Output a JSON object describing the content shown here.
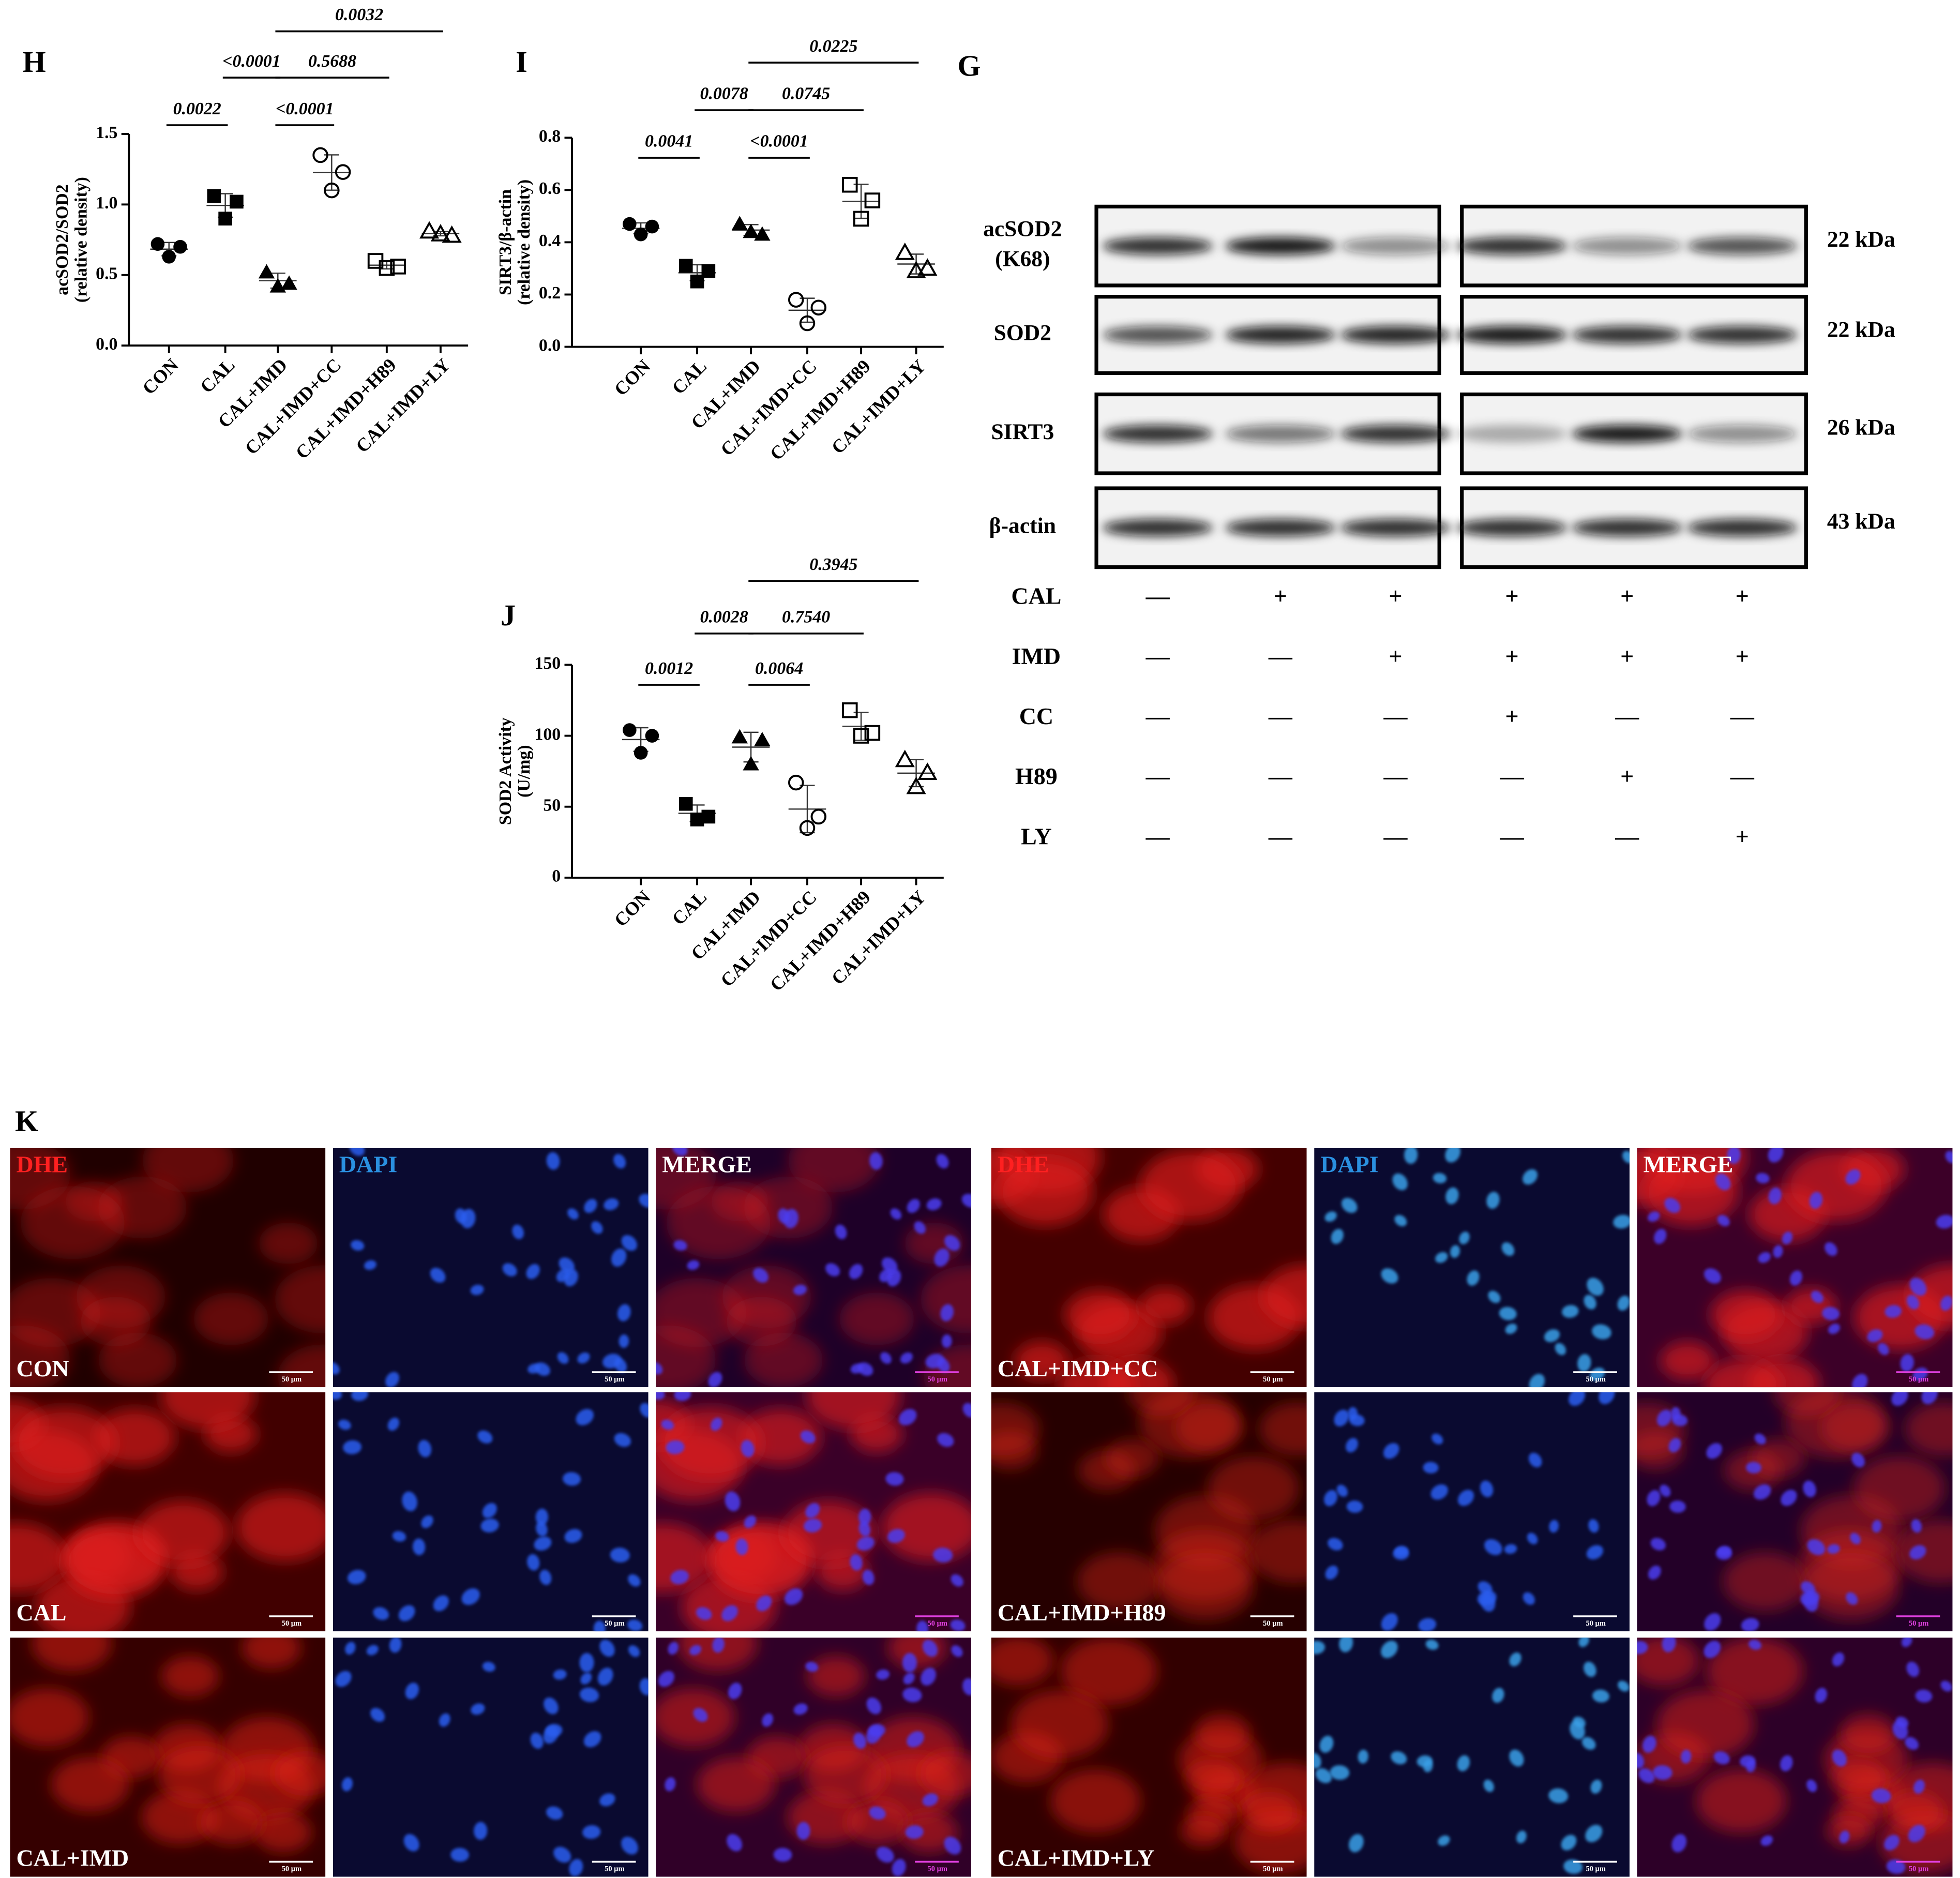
{
  "chart_data": [
    {
      "type": "scatter",
      "panel": "H",
      "ylabel": [
        "acSOD2/SOD2",
        "(relative density)"
      ],
      "categories": [
        "CON",
        "CAL",
        "CAL+IMD",
        "CAL+IMD+CC",
        "CAL+IMD+H89",
        "CAL+IMD+LY"
      ],
      "markers": [
        "circle",
        "square",
        "triangle",
        "circle-open",
        "square-open",
        "triangle-open"
      ],
      "color": "#000000",
      "values": [
        [
          0.72,
          0.7,
          0.63
        ],
        [
          1.06,
          1.02,
          0.9
        ],
        [
          0.52,
          0.44,
          0.42
        ],
        [
          1.35,
          1.23,
          1.1
        ],
        [
          0.6,
          0.56,
          0.55
        ],
        [
          0.81,
          0.78,
          0.79
        ]
      ],
      "ylim": [
        0,
        1.5
      ],
      "yticks": [
        {
          "value": 0,
          "label": "0.0"
        },
        {
          "value": 0.5,
          "label": "0.5"
        },
        {
          "value": 1,
          "label": "1.0"
        },
        {
          "value": 1.5,
          "label": "1.5"
        }
      ],
      "annotations": [
        "0.0022",
        "<0.0001",
        "<0.0001",
        "0.5688",
        "0.0032"
      ]
    },
    {
      "type": "scatter",
      "panel": "I",
      "ylabel": [
        "SIRT3/β-actin",
        "(relative density)"
      ],
      "categories": [
        "CON",
        "CAL",
        "CAL+IMD",
        "CAL+IMD+CC",
        "CAL+IMD+H89",
        "CAL+IMD+LY"
      ],
      "markers": [
        "circle",
        "square",
        "triangle",
        "circle-open",
        "square-open",
        "triangle-open"
      ],
      "color": "#000000",
      "values": [
        [
          0.47,
          0.46,
          0.43
        ],
        [
          0.31,
          0.29,
          0.25
        ],
        [
          0.47,
          0.43,
          0.44
        ],
        [
          0.18,
          0.15,
          0.09
        ],
        [
          0.62,
          0.56,
          0.49
        ],
        [
          0.36,
          0.3,
          0.29
        ]
      ],
      "ylim": [
        0,
        0.8
      ],
      "yticks": [
        {
          "value": 0,
          "label": "0.0"
        },
        {
          "value": 0.2,
          "label": "0.2"
        },
        {
          "value": 0.4,
          "label": "0.4"
        },
        {
          "value": 0.6,
          "label": "0.6"
        },
        {
          "value": 0.8,
          "label": "0.8"
        }
      ],
      "annotations": [
        "0.0041",
        "0.0078",
        "<0.0001",
        "0.0745",
        "0.0225"
      ]
    },
    {
      "type": "scatter",
      "panel": "J",
      "ylabel": [
        "SOD2 Activity",
        "(U/mg)"
      ],
      "categories": [
        "CON",
        "CAL",
        "CAL+IMD",
        "CAL+IMD+CC",
        "CAL+IMD+H89",
        "CAL+IMD+LY"
      ],
      "markers": [
        "circle",
        "square",
        "triangle",
        "circle-open",
        "square-open",
        "triangle-open"
      ],
      "color": "#000000",
      "values": [
        [
          104,
          100,
          88
        ],
        [
          52,
          43,
          41
        ],
        [
          99,
          97,
          80
        ],
        [
          67,
          43,
          35
        ],
        [
          118,
          102,
          100
        ],
        [
          83,
          74,
          64
        ]
      ],
      "ylim": [
        0,
        150
      ],
      "yticks": [
        0,
        50,
        100,
        150
      ],
      "annotations": [
        "0.0012",
        "0.0028",
        "0.0064",
        "0.7540",
        "0.3945"
      ]
    }
  ],
  "blot": {
    "panel": "G",
    "rows": [
      {
        "label": [
          "acSOD2",
          "(K68)"
        ],
        "size": "22 kDa"
      },
      {
        "label": [
          "SOD2"
        ],
        "size": "22 kDa"
      },
      {
        "label": [
          "SIRT3"
        ],
        "size": "26 kDa"
      },
      {
        "label": [
          "β-actin"
        ],
        "size": "43 kDa"
      }
    ],
    "treatments": [
      {
        "label": "CAL",
        "signs": [
          "—",
          "+",
          "+",
          "+",
          "+",
          "+"
        ]
      },
      {
        "label": "IMD",
        "signs": [
          "—",
          "—",
          "+",
          "+",
          "+",
          "+"
        ]
      },
      {
        "label": "CC",
        "signs": [
          "—",
          "—",
          "—",
          "+",
          "—",
          "—"
        ]
      },
      {
        "label": "H89",
        "signs": [
          "—",
          "—",
          "—",
          "—",
          "+",
          "—"
        ]
      },
      {
        "label": "LY",
        "signs": [
          "—",
          "—",
          "—",
          "—",
          "—",
          "+"
        ]
      }
    ]
  },
  "microscopy": {
    "panel": "K",
    "channels": [
      "DHE",
      "DAPI",
      "MERGE"
    ],
    "groups": [
      "CON",
      "CAL",
      "CAL+IMD",
      "CAL+IMD+CC",
      "CAL+IMD+H89",
      "CAL+IMD+LY"
    ],
    "scale_bar": "50 μm"
  }
}
